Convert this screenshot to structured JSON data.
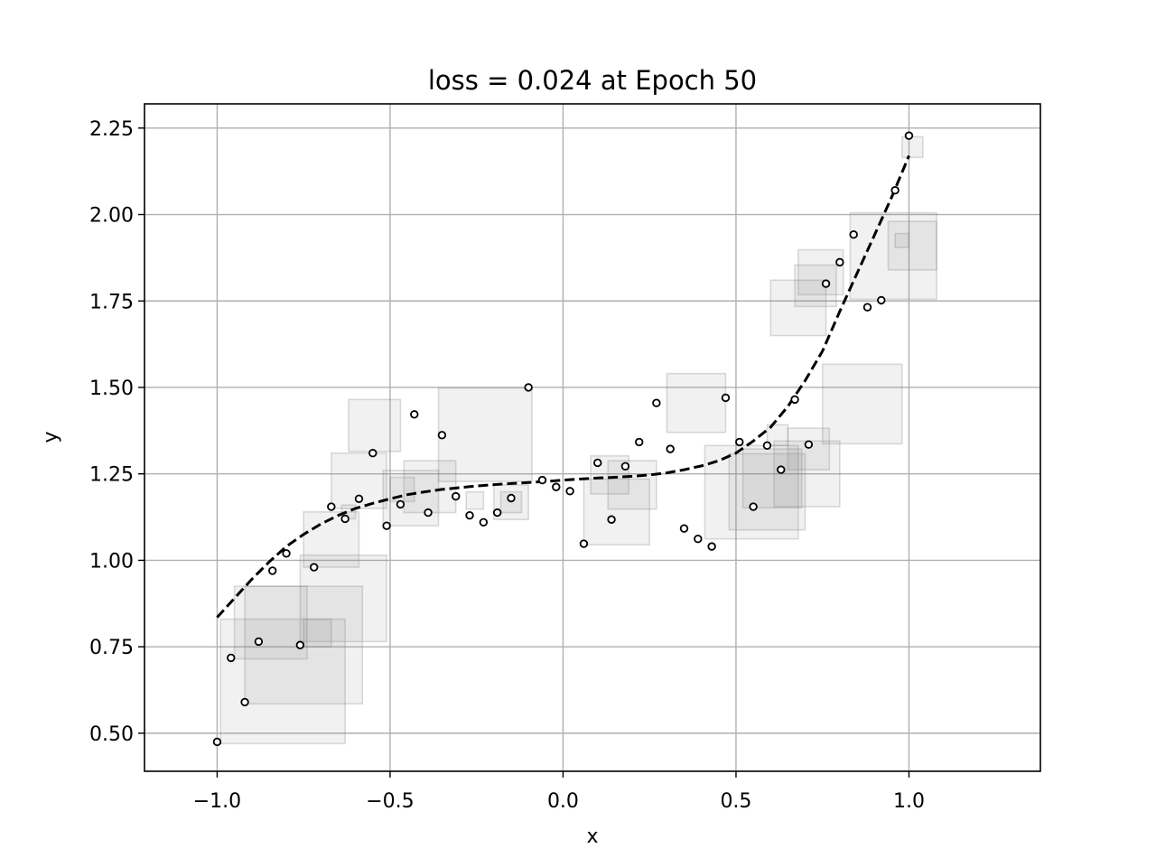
{
  "chart_data": {
    "type": "scatter",
    "title": "loss = 0.024 at Epoch 50",
    "xlabel": "x",
    "ylabel": "y",
    "xlim": [
      -1.21,
      1.38
    ],
    "ylim": [
      0.39,
      2.32
    ],
    "grid": true,
    "xticks": [
      -1.0,
      -0.5,
      0.0,
      0.5,
      1.0
    ],
    "xtick_labels": [
      "−1.0",
      "−0.5",
      "0.0",
      "0.5",
      "1.0"
    ],
    "yticks": [
      0.5,
      0.75,
      1.0,
      1.25,
      1.5,
      1.75,
      2.0,
      2.25
    ],
    "ytick_labels": [
      "0.50",
      "0.75",
      "1.00",
      "1.25",
      "1.50",
      "1.75",
      "2.00",
      "2.25"
    ],
    "colors": {
      "points": "#000000",
      "fit_line": "#000000",
      "squares": "#808080",
      "grid": "#b0b0b0"
    },
    "series": [
      {
        "kind": "points",
        "x": [
          -1.0,
          -0.96,
          -0.92,
          -0.88,
          -0.84,
          -0.8,
          -0.76,
          -0.72,
          -0.67,
          -0.63,
          -0.59,
          -0.55,
          -0.51,
          -0.47,
          -0.43,
          -0.39,
          -0.35,
          -0.31,
          -0.27,
          -0.23,
          -0.19,
          -0.15,
          -0.1,
          -0.06,
          -0.02,
          0.02,
          0.06,
          0.1,
          0.14,
          0.18,
          0.22,
          0.27,
          0.31,
          0.35,
          0.39,
          0.43,
          0.47,
          0.51,
          0.55,
          0.59,
          0.63,
          0.67,
          0.71,
          0.76,
          0.8,
          0.84,
          0.88,
          0.92,
          0.96,
          1.0
        ],
        "y": [
          0.475,
          0.718,
          0.59,
          0.765,
          0.97,
          1.02,
          0.755,
          0.98,
          1.155,
          1.12,
          1.178,
          1.31,
          1.1,
          1.162,
          1.422,
          1.138,
          1.362,
          1.185,
          1.13,
          1.11,
          1.138,
          1.18,
          1.5,
          1.232,
          1.212,
          1.2,
          1.048,
          1.282,
          1.118,
          1.272,
          1.342,
          1.455,
          1.322,
          1.092,
          1.062,
          1.04,
          1.47,
          1.342,
          1.155,
          1.332,
          1.262,
          1.465,
          1.335,
          1.8,
          1.862,
          1.942,
          1.732,
          1.752,
          2.07,
          2.228
        ]
      },
      {
        "kind": "fit",
        "x": [
          -1.0,
          -0.95,
          -0.9,
          -0.85,
          -0.8,
          -0.75,
          -0.7,
          -0.65,
          -0.6,
          -0.55,
          -0.5,
          -0.45,
          -0.4,
          -0.35,
          -0.3,
          -0.25,
          -0.2,
          -0.15,
          -0.1,
          -0.05,
          0.0,
          0.05,
          0.1,
          0.15,
          0.2,
          0.25,
          0.3,
          0.35,
          0.4,
          0.45,
          0.5,
          0.55,
          0.6,
          0.65,
          0.7,
          0.75,
          0.8,
          0.85,
          0.9,
          0.95,
          1.0
        ],
        "y": [
          0.835,
          0.89,
          0.945,
          0.995,
          1.04,
          1.075,
          1.105,
          1.13,
          1.15,
          1.165,
          1.178,
          1.19,
          1.198,
          1.205,
          1.21,
          1.215,
          1.219,
          1.222,
          1.225,
          1.228,
          1.232,
          1.235,
          1.238,
          1.24,
          1.243,
          1.247,
          1.253,
          1.262,
          1.273,
          1.288,
          1.31,
          1.345,
          1.385,
          1.445,
          1.52,
          1.605,
          1.72,
          1.83,
          1.94,
          2.05,
          2.17
        ]
      },
      {
        "kind": "squares",
        "x": [
          -0.99,
          -0.92,
          -0.95,
          -0.75,
          -0.76,
          -0.75,
          -0.67,
          -0.64,
          -0.52,
          -0.36,
          -0.62,
          -0.5,
          -0.46,
          -0.28,
          -0.2,
          -0.18,
          0.06,
          0.08,
          0.13,
          0.3,
          0.41,
          0.48,
          0.52,
          0.61,
          0.75,
          0.65,
          0.6,
          0.67,
          0.59,
          0.83,
          0.68,
          0.96,
          0.94,
          0.98
        ],
        "y": [
          0.47,
          0.585,
          0.715,
          0.75,
          0.765,
          0.98,
          1.15,
          1.12,
          1.1,
          1.228,
          1.315,
          1.17,
          1.138,
          1.148,
          1.118,
          1.138,
          1.045,
          1.192,
          1.148,
          1.37,
          1.062,
          1.088,
          1.152,
          1.155,
          1.337,
          1.262,
          1.65,
          1.734,
          1.332,
          1.755,
          1.768,
          1.905,
          1.84,
          2.165
        ],
        "w": [
          0.36,
          0.34,
          0.21,
          0.08,
          0.25,
          0.16,
          0.16,
          0.04,
          0.16,
          0.27,
          0.15,
          0.07,
          0.15,
          0.05,
          0.1,
          0.06,
          0.19,
          0.11,
          0.14,
          0.17,
          0.27,
          0.22,
          0.17,
          0.19,
          0.23,
          0.12,
          0.16,
          0.12,
          0.06,
          0.25,
          0.13,
          0.04,
          0.14,
          0.06
        ],
        "h": [
          0.36,
          0.34,
          0.21,
          0.08,
          0.25,
          0.16,
          0.16,
          0.04,
          0.16,
          0.27,
          0.15,
          0.07,
          0.15,
          0.05,
          0.1,
          0.06,
          0.19,
          0.11,
          0.14,
          0.17,
          0.27,
          0.22,
          0.17,
          0.19,
          0.23,
          0.12,
          0.16,
          0.12,
          0.06,
          0.25,
          0.13,
          0.04,
          0.14,
          0.06
        ]
      }
    ]
  }
}
